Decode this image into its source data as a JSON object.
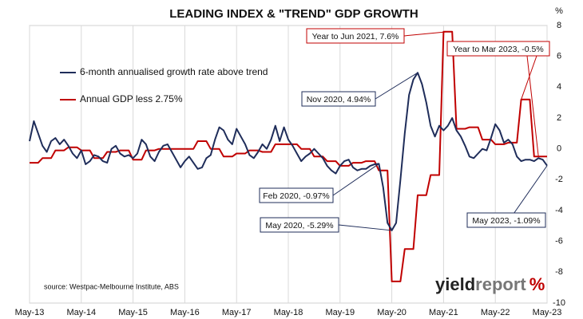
{
  "chart_data": {
    "type": "line",
    "title": "LEADING INDEX & \"TREND\" GDP GROWTH",
    "y_axis_label": "%",
    "source": "source: Westpac-Melbourne Institute, ABS",
    "logo": {
      "first": "yield",
      "second": "report",
      "mark": "%"
    },
    "categories": [
      "May-13",
      null,
      null,
      null,
      null,
      null,
      null,
      null,
      null,
      null,
      null,
      null,
      "May-14",
      null,
      null,
      null,
      null,
      null,
      null,
      null,
      null,
      null,
      null,
      null,
      "May-15",
      null,
      null,
      null,
      null,
      null,
      null,
      null,
      null,
      null,
      null,
      null,
      "May-16",
      null,
      null,
      null,
      null,
      null,
      null,
      null,
      null,
      null,
      null,
      null,
      "May-17",
      null,
      null,
      null,
      null,
      null,
      null,
      null,
      null,
      null,
      null,
      null,
      "May-18",
      null,
      null,
      null,
      null,
      null,
      null,
      null,
      null,
      null,
      null,
      null,
      "May-19",
      null,
      null,
      null,
      null,
      null,
      null,
      null,
      null,
      null,
      null,
      null,
      "May-20",
      null,
      null,
      null,
      null,
      null,
      null,
      null,
      null,
      null,
      null,
      null,
      "May-21",
      null,
      null,
      null,
      null,
      null,
      null,
      null,
      null,
      null,
      null,
      null,
      "May-22",
      null,
      null,
      null,
      null,
      null,
      null,
      null,
      null,
      null,
      null,
      null,
      "May-23"
    ],
    "series": [
      {
        "name": "6-month annualised growth rate above trend",
        "color": "#1f2d5a",
        "values": [
          0.5,
          1.8,
          1.0,
          0.2,
          -0.2,
          0.5,
          0.7,
          0.3,
          0.6,
          0.2,
          -0.3,
          -0.6,
          -0.1,
          -1.0,
          -0.8,
          -0.4,
          -0.5,
          -0.8,
          -0.9,
          0.0,
          0.2,
          -0.3,
          -0.5,
          -0.4,
          -0.6,
          -0.3,
          0.6,
          0.3,
          -0.5,
          -0.8,
          -0.2,
          0.2,
          0.3,
          -0.2,
          -0.7,
          -1.2,
          -0.8,
          -0.5,
          -0.9,
          -1.3,
          -1.2,
          -0.6,
          -0.4,
          0.6,
          1.4,
          1.2,
          0.6,
          0.3,
          1.3,
          0.8,
          0.3,
          -0.4,
          -0.6,
          -0.2,
          0.3,
          0.0,
          0.6,
          1.5,
          0.5,
          1.4,
          0.6,
          0.2,
          -0.3,
          -0.8,
          -0.5,
          -0.3,
          0.0,
          -0.3,
          -0.6,
          -1.1,
          -1.4,
          -1.6,
          -1.1,
          -0.8,
          -0.7,
          -1.2,
          -1.4,
          -1.3,
          -1.3,
          -1.1,
          -1.0,
          -0.97,
          -2.5,
          -4.8,
          -5.29,
          -4.8,
          -2.0,
          1.0,
          3.5,
          4.5,
          4.94,
          4.2,
          3.0,
          1.5,
          0.8,
          1.5,
          1.2,
          1.5,
          2.0,
          1.2,
          0.8,
          0.2,
          -0.5,
          -0.6,
          -0.3,
          0.0,
          -0.1,
          0.7,
          1.6,
          1.2,
          0.4,
          0.6,
          0.3,
          -0.5,
          -0.8,
          -0.7,
          -0.7,
          -0.8,
          -0.6,
          -0.7,
          -1.09
        ]
      },
      {
        "name": "Annual GDP less 2.75%",
        "color": "#c00000",
        "values": [
          -0.9,
          -0.9,
          -0.9,
          -0.6,
          -0.6,
          -0.6,
          -0.1,
          -0.1,
          -0.1,
          0.1,
          0.1,
          0.1,
          -0.1,
          -0.1,
          -0.1,
          -0.6,
          -0.6,
          -0.6,
          -0.2,
          -0.2,
          -0.2,
          -0.1,
          -0.1,
          -0.1,
          -0.7,
          -0.7,
          -0.7,
          -0.1,
          -0.1,
          -0.1,
          0.0,
          0.0,
          0.0,
          0.0,
          0.0,
          0.0,
          0.0,
          0.0,
          0.0,
          0.5,
          0.5,
          0.5,
          0.0,
          0.0,
          0.0,
          -0.5,
          -0.5,
          -0.5,
          -0.3,
          -0.3,
          -0.3,
          -0.1,
          -0.1,
          -0.1,
          -0.2,
          -0.2,
          -0.2,
          0.3,
          0.3,
          0.3,
          0.3,
          0.3,
          0.3,
          0.0,
          0.0,
          0.0,
          -0.5,
          -0.5,
          -0.5,
          -0.8,
          -0.8,
          -0.8,
          -1.1,
          -1.1,
          -1.1,
          -0.9,
          -0.9,
          -0.9,
          -0.8,
          -0.8,
          -0.8,
          -1.4,
          -1.4,
          -1.4,
          -8.6,
          -8.6,
          -8.6,
          -6.5,
          -6.5,
          -6.5,
          -3.0,
          -3.0,
          -3.0,
          -1.7,
          -1.7,
          -1.7,
          7.6,
          7.6,
          7.6,
          1.3,
          1.3,
          1.3,
          1.4,
          1.4,
          1.4,
          0.6,
          0.6,
          0.6,
          0.3,
          0.3,
          0.3,
          0.4,
          0.4,
          0.4,
          3.2,
          3.2,
          3.2,
          -0.5,
          -0.5,
          -0.5,
          -0.5
        ]
      }
    ],
    "annotations": [
      "Year to Jun 2021, 7.6%",
      "Year to Mar 2023, -0.5%",
      "Nov 2020, 4.94%",
      "Feb 2020, -0.97%",
      "May 2020, -5.29%",
      "May 2023, -1.09%"
    ],
    "ylim": [
      -10,
      8
    ],
    "yticks": [
      -10,
      -8,
      -6,
      -4,
      -2,
      0,
      2,
      4,
      6,
      8
    ],
    "y_axis_side": "right",
    "grid": true
  }
}
